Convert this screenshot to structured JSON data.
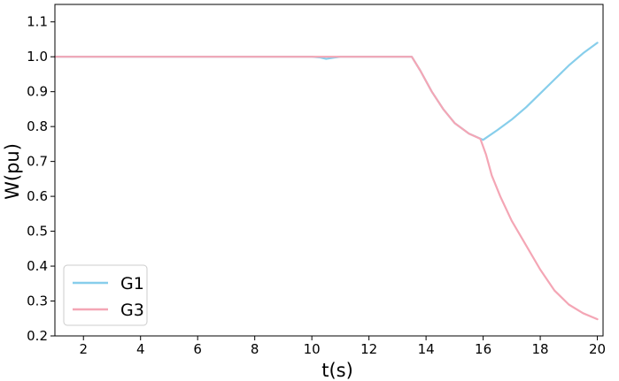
{
  "chart_data": {
    "type": "line",
    "xlabel": "t(s)",
    "ylabel": "W(pu)",
    "xlim": [
      1,
      20.2
    ],
    "ylim": [
      0.2,
      1.15
    ],
    "x_ticks": [
      "2",
      "4",
      "6",
      "8",
      "10",
      "12",
      "14",
      "16",
      "18",
      "20"
    ],
    "y_ticks": [
      "0.2",
      "0.3",
      "0.4",
      "0.5",
      "0.6",
      "0.7",
      "0.8",
      "0.9",
      "1.0",
      "1.1"
    ],
    "grid": false,
    "legend_position": "lower-left",
    "series": [
      {
        "name": "G1",
        "color": "#87ceeb",
        "x": [
          1,
          2,
          3,
          4,
          5,
          6,
          7,
          8,
          9,
          10,
          10.3,
          10.5,
          10.8,
          11,
          12,
          13,
          13.5,
          13.8,
          14.2,
          14.6,
          15,
          15.5,
          16,
          16.5,
          17,
          17.5,
          18,
          18.5,
          19,
          19.5,
          20
        ],
        "y": [
          1.0,
          1.0,
          1.0,
          1.0,
          1.0,
          1.0,
          1.0,
          1.0,
          1.0,
          1.0,
          0.998,
          0.994,
          0.998,
          1.0,
          1.0,
          1.0,
          1.0,
          0.96,
          0.9,
          0.85,
          0.81,
          0.78,
          0.762,
          0.79,
          0.82,
          0.855,
          0.895,
          0.935,
          0.975,
          1.01,
          1.04
        ]
      },
      {
        "name": "G3",
        "color": "#f4a6b5",
        "x": [
          1,
          2,
          3,
          4,
          5,
          6,
          7,
          8,
          9,
          10,
          11,
          12,
          13,
          13.5,
          13.8,
          14.2,
          14.6,
          15,
          15.5,
          15.9,
          16.1,
          16.3,
          16.6,
          17,
          17.5,
          18,
          18.5,
          19,
          19.5,
          20
        ],
        "y": [
          1.0,
          1.0,
          1.0,
          1.0,
          1.0,
          1.0,
          1.0,
          1.0,
          1.0,
          1.0,
          1.0,
          1.0,
          1.0,
          1.0,
          0.96,
          0.9,
          0.85,
          0.81,
          0.78,
          0.765,
          0.72,
          0.66,
          0.6,
          0.53,
          0.46,
          0.39,
          0.33,
          0.29,
          0.265,
          0.248
        ]
      }
    ]
  }
}
